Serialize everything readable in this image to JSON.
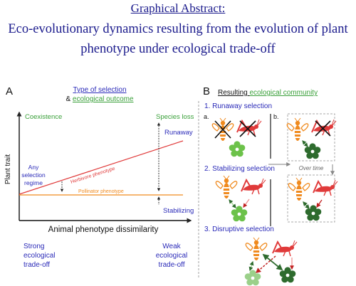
{
  "header": {
    "graphical_abstract": "Graphical Abstract:",
    "title_line1": "Eco-evolutionary dynamics resulting from the evolution of plant",
    "title_line2": "phenotype under ecological trade-off"
  },
  "panel_a": {
    "letter": "A",
    "type_of_selection": "Type of selection",
    "amp": "& ",
    "ecological_outcome": "ecological outcome",
    "coexistence": "Coexistence",
    "species_loss": "Species loss",
    "runaway": "Runaway",
    "stabilizing": "Stabilizing",
    "any_1": "Any",
    "any_2": "selection",
    "any_3": "regime",
    "herbivore_phenotype": "Herbivore phenotype",
    "pollinator_phenotype": "Pollinator phenotype",
    "y_label": "Plant trait",
    "x_label": "Animal phenotype dissimilarity",
    "strong_1": "Strong",
    "strong_2": "ecological",
    "strong_3": "trade-off",
    "weak_1": "Weak",
    "weak_2": "ecological",
    "weak_3": "trade-off"
  },
  "panel_b": {
    "letter": "B",
    "resulting": "Resulting ",
    "ecological_community": "ecological community",
    "runaway_selection": "1. Runaway selection",
    "sub_a": "a.",
    "sub_b": "b.",
    "stabilizing_selection": "2. Stabilizing selection",
    "over_time": "Over time",
    "disruptive_selection": "3. Disruptive selection"
  },
  "colors": {
    "title_blue": "#1a1a8c",
    "label_blue": "#2a2ab8",
    "green_text": "#3aa03a",
    "herbivore_red": "#e03a3a",
    "pollinator_orange": "#f08a1e",
    "flower_green": "#6cc24a",
    "dark_flower": "#2e6b2e"
  }
}
